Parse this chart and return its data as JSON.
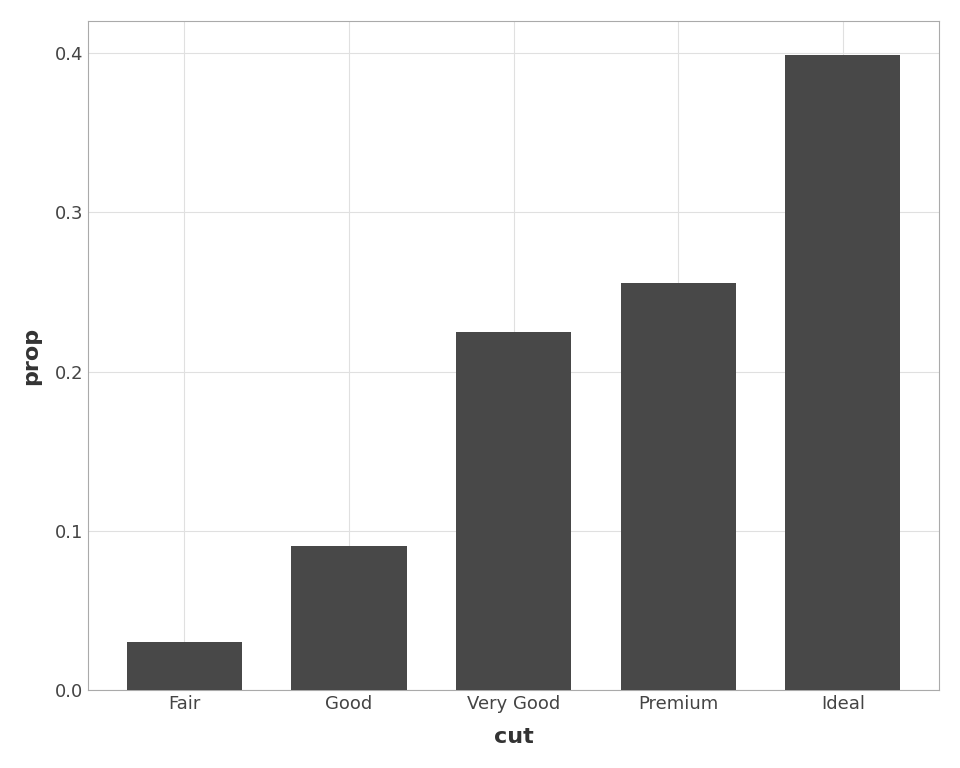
{
  "categories": [
    "Fair",
    "Good",
    "Very Good",
    "Premium",
    "Ideal"
  ],
  "values": [
    0.0303,
    0.0905,
    0.2251,
    0.2558,
    0.3984
  ],
  "bar_color": "#484848",
  "xlabel": "cut",
  "ylabel": "prop",
  "ylim": [
    0,
    0.42
  ],
  "yticks": [
    0.0,
    0.1,
    0.2,
    0.3,
    0.4
  ],
  "xlabel_fontsize": 16,
  "ylabel_fontsize": 16,
  "tick_fontsize": 13,
  "background_color": "#ffffff",
  "panel_background": "#ffffff",
  "grid_color": "#e0e0e0",
  "spine_color": "#aaaaaa",
  "bar_width": 0.7
}
